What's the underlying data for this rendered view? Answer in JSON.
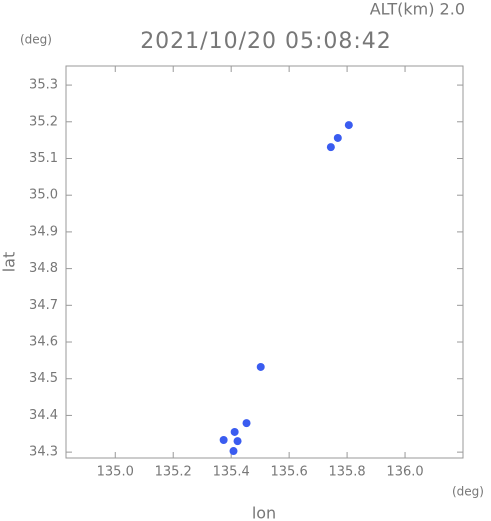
{
  "chart_data": {
    "type": "scatter",
    "title": "2021/10/20 05:08:42",
    "subtitle": "ALT(km) 2.0",
    "x_label": "lon",
    "y_label": "lat",
    "x_unit": "(deg)",
    "y_unit": "(deg)",
    "x": [
      135.806,
      135.768,
      135.744,
      135.502,
      135.453,
      135.412,
      135.374,
      135.422,
      135.408
    ],
    "values": [
      35.191,
      35.156,
      35.131,
      34.532,
      34.379,
      34.355,
      34.333,
      34.33,
      34.303
    ],
    "color": "#3a5cf0",
    "xlim": [
      134.83,
      136.2
    ],
    "ylim": [
      34.284,
      35.352
    ],
    "xticks": [
      {
        "value": 135,
        "label": "135.0"
      },
      135.2,
      135.4,
      135.6,
      135.8,
      {
        "value": 136,
        "label": "136.0"
      }
    ],
    "yticks": [
      34.3,
      34.4,
      34.5,
      34.6,
      34.7,
      34.8,
      34.9,
      {
        "value": 35,
        "label": "35.0"
      },
      35.1,
      35.2,
      35.3
    ]
  }
}
